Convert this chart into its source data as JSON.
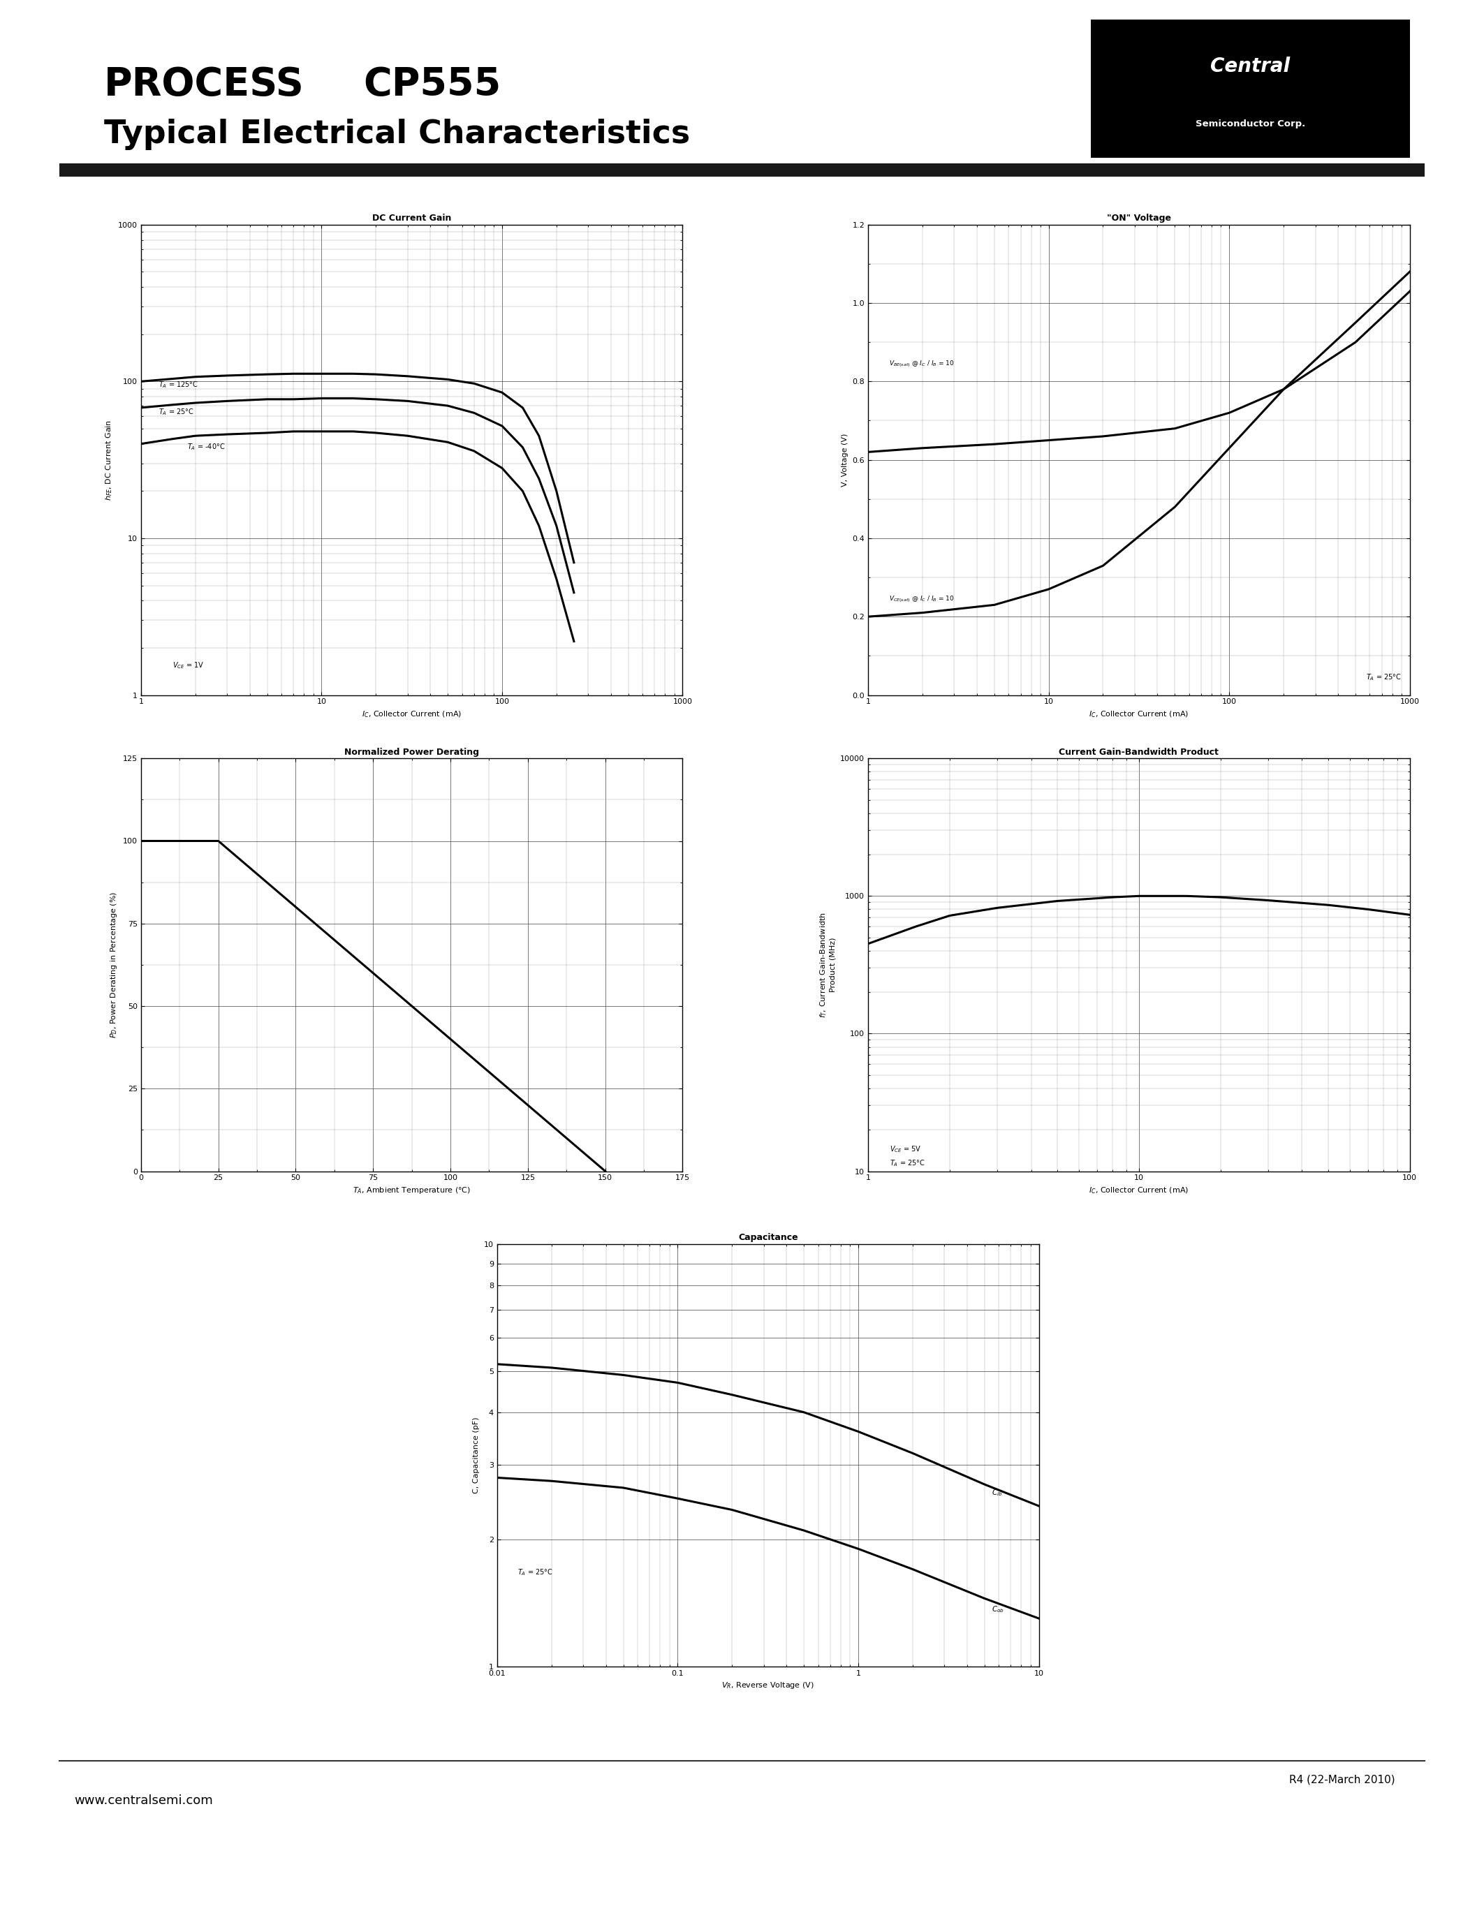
{
  "title_process": "PROCESS",
  "title_model": "CP555",
  "subtitle": "Typical Electrical Characteristics",
  "page_footer": "www.centralsemi.com",
  "revision": "R4 (22-March 2010)",
  "background": "#ffffff",
  "plot1_title": "DC Current Gain",
  "plot2_title": "ON Voltage",
  "plot3_title": "Normalized Power Derating",
  "plot4_title": "Current Gain-Bandwidth Product",
  "plot5_title": "Capacitance",
  "p1_ic_125": [
    1,
    1.5,
    2,
    3,
    5,
    7,
    10,
    15,
    20,
    30,
    50,
    70,
    100,
    130,
    160,
    200,
    250
  ],
  "p1_hfe_125": [
    100,
    104,
    107,
    109,
    111,
    112,
    112,
    112,
    111,
    108,
    103,
    97,
    85,
    68,
    45,
    20,
    7
  ],
  "p1_ic_25": [
    1,
    1.5,
    2,
    3,
    5,
    7,
    10,
    15,
    20,
    30,
    50,
    70,
    100,
    130,
    160,
    200,
    250
  ],
  "p1_hfe_25": [
    68,
    71,
    73,
    75,
    77,
    77,
    78,
    78,
    77,
    75,
    70,
    63,
    52,
    38,
    24,
    12,
    4.5
  ],
  "p1_ic_m40": [
    1,
    1.5,
    2,
    3,
    5,
    7,
    10,
    15,
    20,
    30,
    50,
    70,
    100,
    130,
    160,
    200,
    250
  ],
  "p1_hfe_m40": [
    40,
    43,
    45,
    46,
    47,
    48,
    48,
    48,
    47,
    45,
    41,
    36,
    28,
    20,
    12,
    5.5,
    2.2
  ],
  "p2_ic": [
    1,
    2,
    5,
    10,
    20,
    50,
    100,
    200,
    500,
    1000
  ],
  "p2_vbe": [
    0.62,
    0.63,
    0.64,
    0.65,
    0.66,
    0.68,
    0.72,
    0.78,
    0.9,
    1.03
  ],
  "p2_vce": [
    0.2,
    0.21,
    0.23,
    0.27,
    0.33,
    0.48,
    0.63,
    0.78,
    0.95,
    1.08
  ],
  "p3_temp": [
    0,
    25,
    150
  ],
  "p3_power": [
    100,
    100,
    0
  ],
  "p4_ic": [
    1,
    1.5,
    2,
    3,
    5,
    8,
    10,
    15,
    20,
    30,
    50,
    70,
    100
  ],
  "p4_ft": [
    450,
    600,
    720,
    820,
    920,
    980,
    1000,
    1000,
    980,
    930,
    860,
    800,
    730
  ],
  "p5_vr": [
    0.01,
    0.02,
    0.05,
    0.1,
    0.2,
    0.5,
    1.0,
    2.0,
    5.0,
    10.0
  ],
  "p5_cib": [
    5.2,
    5.1,
    4.9,
    4.7,
    4.4,
    4.0,
    3.6,
    3.2,
    2.7,
    2.4
  ],
  "p5_cob": [
    2.8,
    2.75,
    2.65,
    2.5,
    2.35,
    2.1,
    1.9,
    1.7,
    1.45,
    1.3
  ]
}
